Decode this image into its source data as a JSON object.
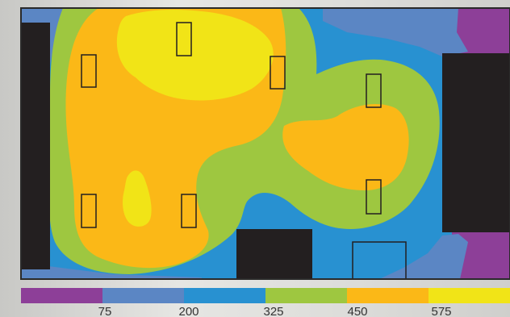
{
  "heatmap": {
    "colors": {
      "band_1": "#8d3f98",
      "band_2": "#5b86c4",
      "band_3": "#2891d1",
      "band_4": "#9ec740",
      "band_5": "#fbb817",
      "band_6": "#f1e417",
      "obstacle": "#231f20",
      "frame": "#2a2a2a"
    },
    "fixtures": [
      {
        "name": "fixture-1"
      },
      {
        "name": "fixture-2"
      },
      {
        "name": "fixture-3"
      },
      {
        "name": "fixture-4"
      },
      {
        "name": "fixture-5"
      },
      {
        "name": "fixture-6"
      },
      {
        "name": "fixture-7"
      },
      {
        "name": "fixture-8"
      }
    ]
  },
  "legend": {
    "band_colors": [
      "#8d3f98",
      "#5b86c4",
      "#2891d1",
      "#9ec740",
      "#fbb817",
      "#f1e417"
    ],
    "ticks": [
      "75",
      "200",
      "325",
      "450",
      "575"
    ]
  }
}
